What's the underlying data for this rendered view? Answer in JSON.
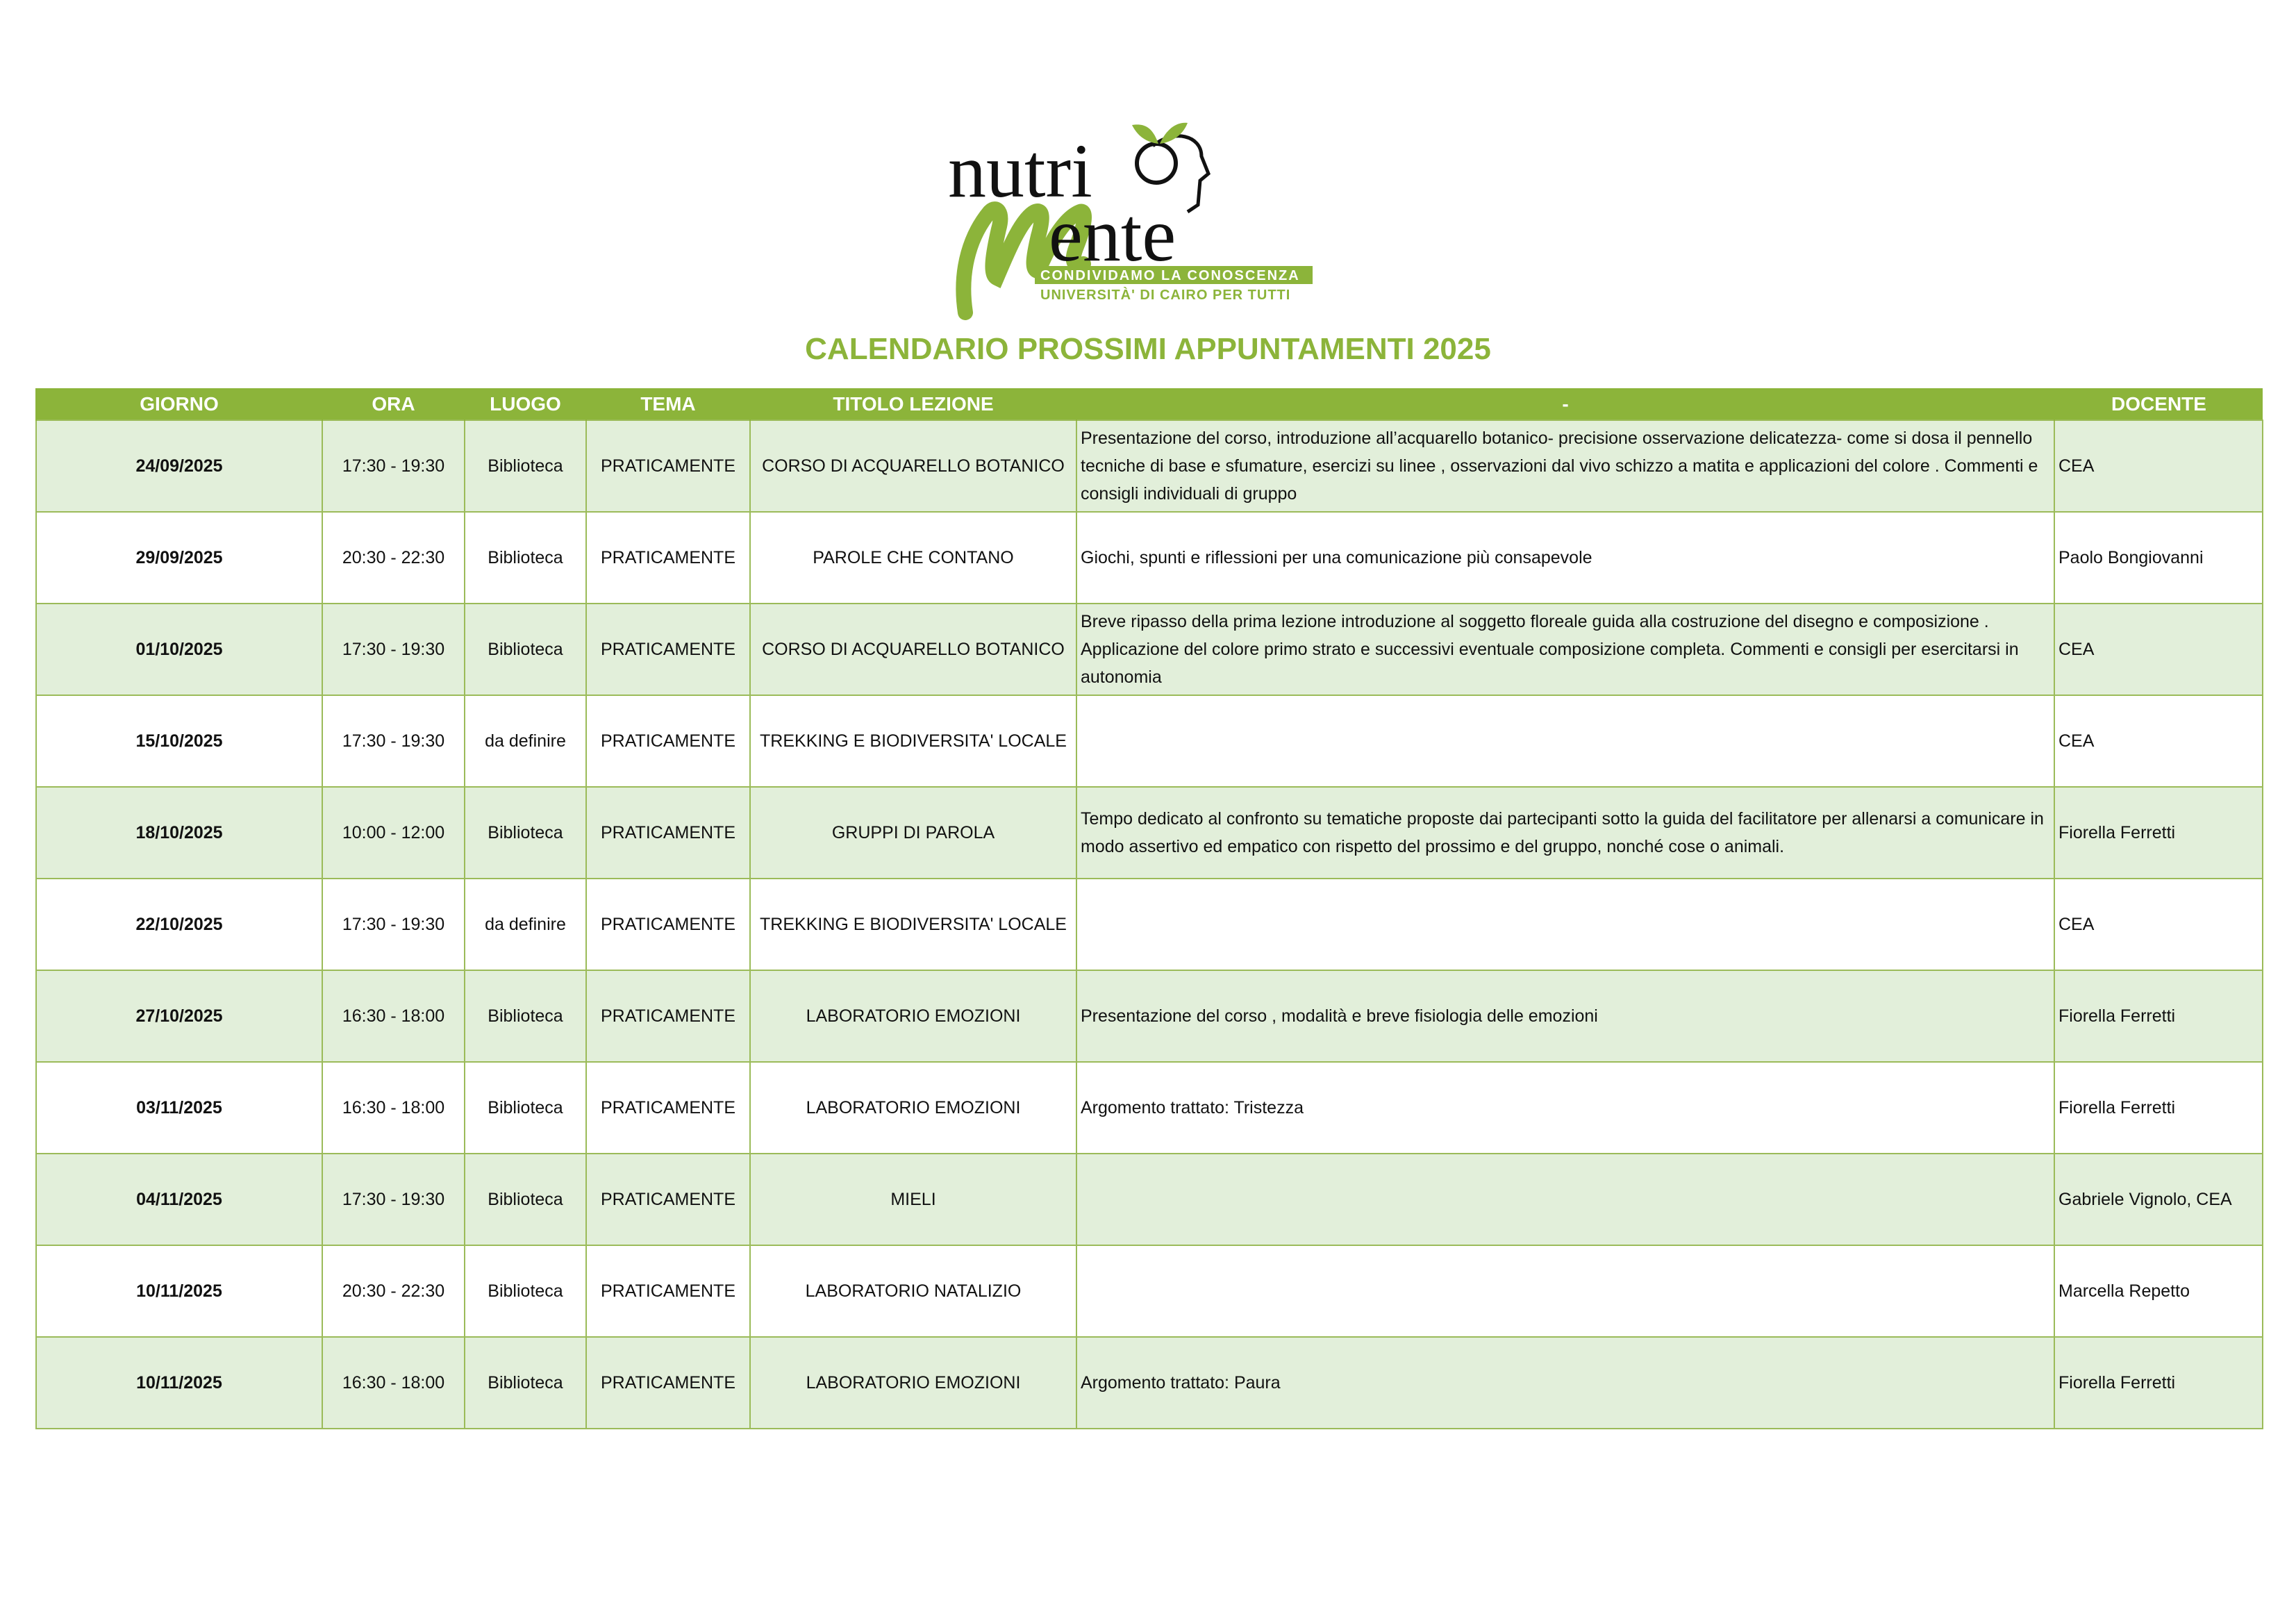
{
  "logo": {
    "line1": "nutri",
    "line2": "ente",
    "tagline": "CONDIVIDAMO LA CONOSCENZA",
    "subtagline": "UNIVERSITÀ' DI CAIRO PER TUTTI"
  },
  "title": "CALENDARIO PROSSIMI APPUNTAMENTI 2025",
  "colors": {
    "accent": "#8cb43a",
    "row_alt": "#e2efda",
    "border": "#9bbb59"
  },
  "headers": [
    "GIORNO",
    "ORA",
    "LUOGO",
    "TEMA",
    "TITOLO LEZIONE",
    "-",
    "DOCENTE"
  ],
  "rows": [
    {
      "giorno": "24/09/2025",
      "ora": "17:30 - 19:30",
      "luogo": "Biblioteca",
      "tema": "PRATICAMENTE",
      "titolo": "CORSO DI ACQUARELLO BOTANICO",
      "descrizione": "Presentazione del corso, introduzione all’acquarello botanico- precisione osservazione delicatezza- come si dosa il pennello tecniche di base e sfumature, esercizi su linee , osservazioni dal vivo schizzo a matita e applicazioni del colore . Commenti e consigli individuali di gruppo",
      "docente": "CEA"
    },
    {
      "giorno": "29/09/2025",
      "ora": "20:30 - 22:30",
      "luogo": "Biblioteca",
      "tema": "PRATICAMENTE",
      "titolo": "PAROLE CHE CONTANO",
      "descrizione": "Giochi, spunti e riflessioni per una comunicazione più consapevole",
      "docente": "Paolo Bongiovanni"
    },
    {
      "giorno": "01/10/2025",
      "ora": "17:30 - 19:30",
      "luogo": "Biblioteca",
      "tema": "PRATICAMENTE",
      "titolo": "CORSO DI ACQUARELLO BOTANICO",
      "descrizione": "Breve ripasso della prima lezione introduzione al soggetto floreale guida alla costruzione del disegno e composizione . Applicazione del colore primo strato e successivi eventuale composizione completa. Commenti e consigli per esercitarsi in autonomia",
      "docente": "CEA"
    },
    {
      "giorno": "15/10/2025",
      "ora": "17:30 - 19:30",
      "luogo": "da definire",
      "tema": "PRATICAMENTE",
      "titolo": "TREKKING E BIODIVERSITA' LOCALE",
      "descrizione": "",
      "docente": "CEA"
    },
    {
      "giorno": "18/10/2025",
      "ora": "10:00 - 12:00",
      "luogo": "Biblioteca",
      "tema": "PRATICAMENTE",
      "titolo": "GRUPPI DI PAROLA",
      "descrizione": "Tempo dedicato al confronto su tematiche proposte dai partecipanti sotto la guida del facilitatore per allenarsi a comunicare in modo assertivo ed empatico con rispetto del prossimo e del gruppo, nonché cose o animali.",
      "docente": "Fiorella Ferretti"
    },
    {
      "giorno": "22/10/2025",
      "ora": "17:30 - 19:30",
      "luogo": "da definire",
      "tema": "PRATICAMENTE",
      "titolo": "TREKKING E BIODIVERSITA' LOCALE",
      "descrizione": "",
      "docente": "CEA"
    },
    {
      "giorno": "27/10/2025",
      "ora": "16:30 - 18:00",
      "luogo": "Biblioteca",
      "tema": "PRATICAMENTE",
      "titolo": "LABORATORIO EMOZIONI",
      "descrizione": "Presentazione del corso , modalità e breve fisiologia delle emozioni",
      "docente": "Fiorella Ferretti"
    },
    {
      "giorno": "03/11/2025",
      "ora": "16:30 - 18:00",
      "luogo": "Biblioteca",
      "tema": "PRATICAMENTE",
      "titolo": "LABORATORIO EMOZIONI",
      "descrizione": "Argomento trattato: Tristezza",
      "docente": "Fiorella Ferretti"
    },
    {
      "giorno": "04/11/2025",
      "ora": "17:30 - 19:30",
      "luogo": "Biblioteca",
      "tema": "PRATICAMENTE",
      "titolo": "MIELI",
      "descrizione": "",
      "docente": "Gabriele Vignolo, CEA"
    },
    {
      "giorno": "10/11/2025",
      "ora": "20:30 - 22:30",
      "luogo": "Biblioteca",
      "tema": "PRATICAMENTE",
      "titolo": "LABORATORIO NATALIZIO",
      "descrizione": "",
      "docente": "Marcella Repetto"
    },
    {
      "giorno": "10/11/2025",
      "ora": "16:30 - 18:00",
      "luogo": "Biblioteca",
      "tema": "PRATICAMENTE",
      "titolo": "LABORATORIO EMOZIONI",
      "descrizione": "Argomento trattato: Paura",
      "docente": "Fiorella Ferretti"
    }
  ]
}
